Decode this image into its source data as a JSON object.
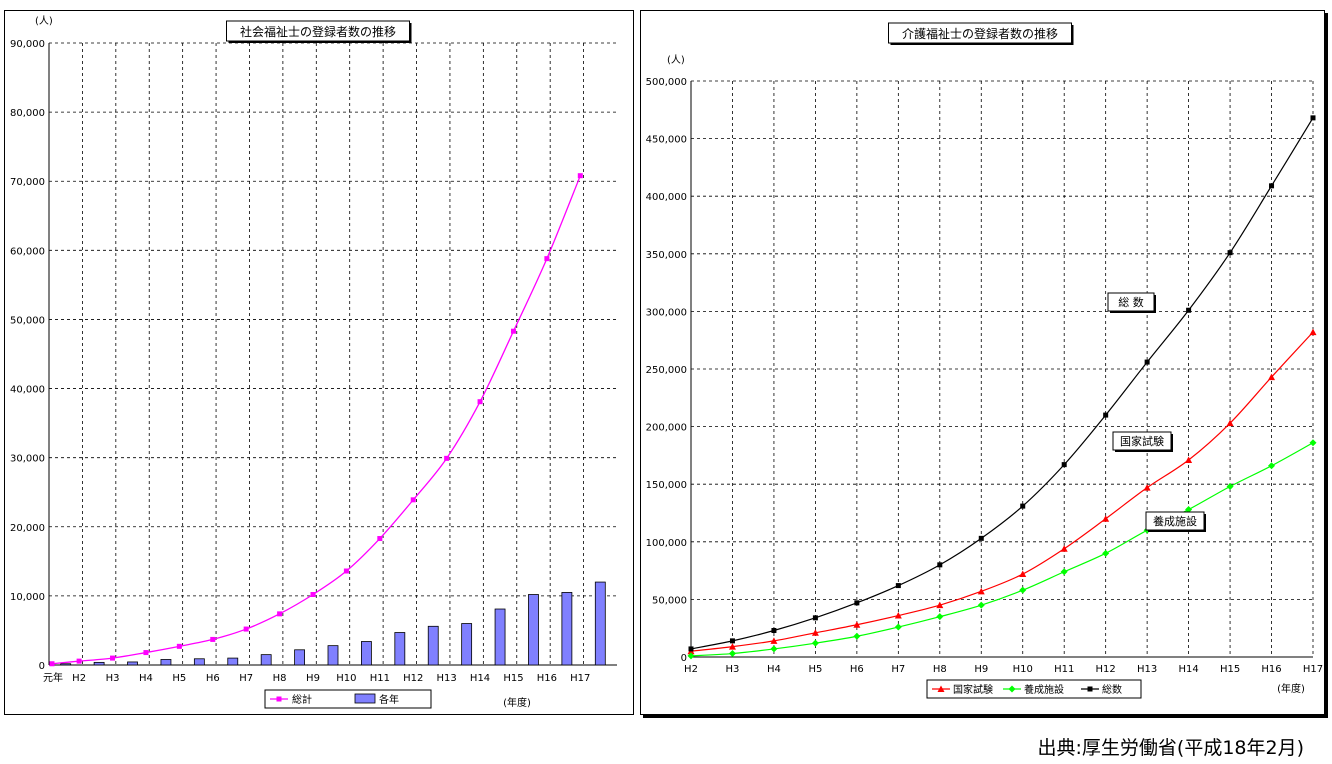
{
  "source_note": "出典:厚生労働省(平成18年2月)",
  "chart_data": [
    {
      "type": "bar",
      "title": "社会福祉士の登録者数の推移",
      "y_unit": "(人)",
      "x_unit": "(年度)",
      "ylim": [
        0,
        90000
      ],
      "yticks": [
        "0",
        "10,000",
        "20,000",
        "30,000",
        "40,000",
        "50,000",
        "60,000",
        "70,000",
        "80,000",
        "90,000"
      ],
      "categories": [
        "元年",
        "H2",
        "H3",
        "H4",
        "H5",
        "H6",
        "H7",
        "H8",
        "H9",
        "H10",
        "H11",
        "H12",
        "H13",
        "H14",
        "H15",
        "H16",
        "H17"
      ],
      "grid": true,
      "legend": "bottom",
      "series": [
        {
          "name": "総計",
          "kind": "line",
          "color": "#ff00ff",
          "values": [
            180,
            560,
            1000,
            1800,
            2700,
            3700,
            5200,
            7400,
            10200,
            13600,
            18300,
            23900,
            29900,
            38100,
            48300,
            58800,
            70800
          ]
        },
        {
          "name": "各年",
          "kind": "bar",
          "color": "#8080ff",
          "values": [
            180,
            380,
            440,
            800,
            900,
            1000,
            1500,
            2200,
            2800,
            3400,
            4700,
            5600,
            6000,
            8100,
            10200,
            10500,
            12000
          ]
        }
      ]
    },
    {
      "type": "line",
      "title": "介護福祉士の登録者数の推移",
      "y_unit": "(人)",
      "x_unit": "(年度)",
      "ylim": [
        0,
        500000
      ],
      "yticks": [
        "0",
        "50,000",
        "100,000",
        "150,000",
        "200,000",
        "250,000",
        "300,000",
        "350,000",
        "400,000",
        "450,000",
        "500,000"
      ],
      "categories": [
        "H2",
        "H3",
        "H4",
        "H5",
        "H6",
        "H7",
        "H8",
        "H9",
        "H10",
        "H11",
        "H12",
        "H13",
        "H14",
        "H15",
        "H16",
        "H17"
      ],
      "grid": true,
      "legend": "bottom",
      "annotations": [
        "総 数",
        "国家試験",
        "養成施設"
      ],
      "series": [
        {
          "name": "国家試験",
          "marker": "triangle",
          "color": "#ff0000",
          "values": [
            5000,
            9000,
            14000,
            21000,
            28000,
            36000,
            45000,
            57000,
            72000,
            94000,
            120000,
            147000,
            171000,
            203000,
            243000,
            282000
          ]
        },
        {
          "name": "養成施設",
          "marker": "diamond",
          "color": "#00ff00",
          "values": [
            1000,
            3000,
            7000,
            12000,
            18000,
            26000,
            35000,
            45000,
            58000,
            74000,
            90000,
            110000,
            128000,
            148000,
            166000,
            186000
          ]
        },
        {
          "name": "総数",
          "marker": "square",
          "color": "#000000",
          "values": [
            7000,
            14000,
            23000,
            34000,
            47000,
            62000,
            80000,
            103000,
            131000,
            167000,
            210000,
            256000,
            301000,
            351000,
            409000,
            468000
          ]
        }
      ]
    }
  ]
}
